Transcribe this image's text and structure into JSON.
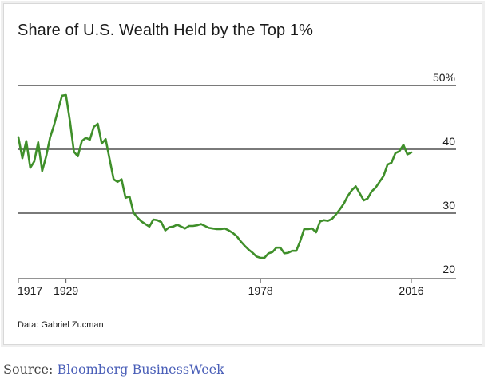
{
  "chart_data": {
    "type": "line",
    "title": "Share of U.S. Wealth Held by the Top 1%",
    "xlabel": "",
    "ylabel": "",
    "ylim": [
      20,
      50
    ],
    "xlim": [
      1917,
      2016
    ],
    "y_ticks": [
      "20",
      "30",
      "40",
      "50%"
    ],
    "x_ticks": [
      "1917",
      "1929",
      "1978",
      "2016"
    ],
    "grid": true,
    "series": [
      {
        "color": "#3f8f2a",
        "x": [
          1917,
          1918,
          1919,
          1920,
          1921,
          1922,
          1923,
          1924,
          1925,
          1926,
          1927,
          1928,
          1929,
          1930,
          1931,
          1932,
          1933,
          1934,
          1935,
          1936,
          1937,
          1938,
          1939,
          1940,
          1941,
          1942,
          1943,
          1944,
          1945,
          1946,
          1947,
          1948,
          1949,
          1950,
          1951,
          1952,
          1953,
          1954,
          1955,
          1956,
          1957,
          1958,
          1959,
          1960,
          1961,
          1962,
          1963,
          1964,
          1965,
          1966,
          1967,
          1968,
          1969,
          1970,
          1971,
          1972,
          1973,
          1974,
          1975,
          1976,
          1977,
          1978,
          1979,
          1980,
          1981,
          1982,
          1983,
          1984,
          1985,
          1986,
          1987,
          1988,
          1989,
          1990,
          1991,
          1992,
          1993,
          1994,
          1995,
          1996,
          1997,
          1998,
          1999,
          2000,
          2001,
          2002,
          2003,
          2004,
          2005,
          2006,
          2007,
          2008,
          2009,
          2010,
          2011,
          2012,
          2013,
          2014,
          2015,
          2016
        ],
        "y": [
          41.9,
          38.6,
          41.3,
          37.1,
          38.1,
          41.1,
          36.6,
          38.9,
          41.9,
          43.8,
          46.2,
          48.4,
          48.5,
          44.4,
          39.6,
          38.9,
          41.3,
          41.8,
          41.5,
          43.5,
          44.0,
          40.9,
          41.6,
          38.4,
          35.3,
          34.9,
          35.3,
          32.4,
          32.6,
          30.1,
          29.3,
          28.7,
          28.3,
          27.9,
          29.0,
          28.9,
          28.6,
          27.3,
          27.8,
          27.9,
          28.2,
          27.9,
          27.6,
          28.0,
          28.0,
          28.1,
          28.3,
          28.0,
          27.7,
          27.6,
          27.5,
          27.5,
          27.6,
          27.3,
          26.9,
          26.4,
          25.6,
          24.9,
          24.3,
          23.8,
          23.2,
          23.0,
          23.0,
          23.7,
          23.9,
          24.6,
          24.6,
          23.7,
          23.8,
          24.1,
          24.1,
          25.6,
          27.5,
          27.5,
          27.6,
          27.0,
          28.7,
          28.9,
          28.8,
          29.1,
          29.8,
          30.6,
          31.5,
          32.7,
          33.6,
          34.2,
          33.1,
          32.0,
          32.3,
          33.4,
          34.0,
          34.9,
          35.8,
          37.6,
          37.9,
          39.4,
          39.7,
          40.7,
          39.2,
          39.5
        ]
      }
    ],
    "source_note": "Data: Gabriel Zucman"
  },
  "caption": {
    "prefix": "Source:",
    "link_text": "Bloomberg BusinessWeek"
  }
}
